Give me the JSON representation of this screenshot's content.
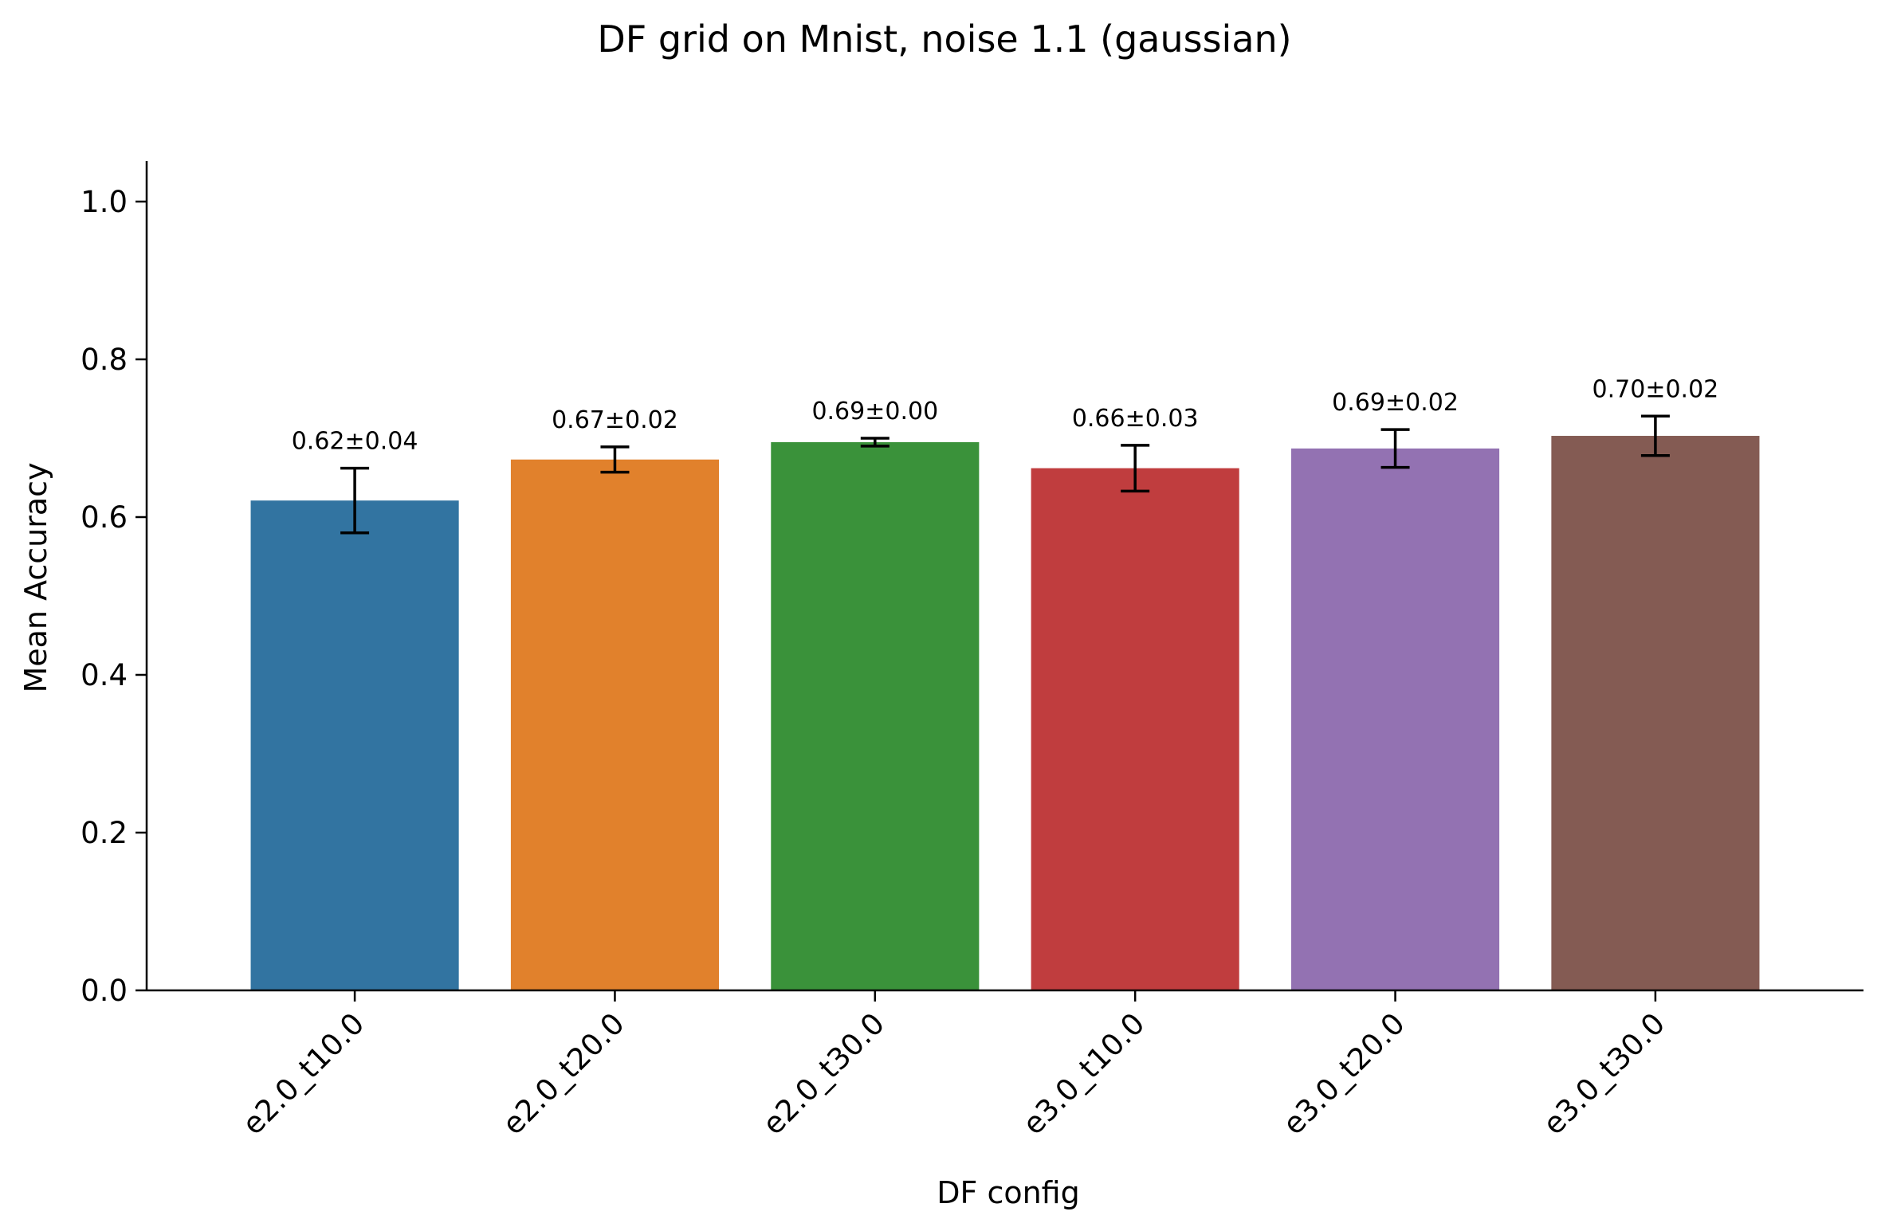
{
  "chart_data": {
    "type": "bar",
    "title": "DF grid on Mnist, noise 1.1 (gaussian)",
    "xlabel": "DF config",
    "ylabel": "Mean Accuracy",
    "ylim": [
      0,
      1.05
    ],
    "yticks": [
      0.0,
      0.2,
      0.4,
      0.6,
      0.8,
      1.0
    ],
    "ytick_labels": [
      "0.0",
      "0.2",
      "0.4",
      "0.6",
      "0.8",
      "1.0"
    ],
    "grid": false,
    "legend": "none",
    "categories": [
      "e2.0_t10.0",
      "e2.0_t20.0",
      "e2.0_t30.0",
      "e3.0_t10.0",
      "e3.0_t20.0",
      "e3.0_t30.0"
    ],
    "values": [
      0.621,
      0.673,
      0.695,
      0.662,
      0.687,
      0.703
    ],
    "errors": [
      0.041,
      0.016,
      0.005,
      0.029,
      0.024,
      0.025
    ],
    "bar_labels": [
      "0.62±0.04",
      "0.67±0.02",
      "0.69±0.00",
      "0.66±0.03",
      "0.69±0.02",
      "0.70±0.02"
    ],
    "colors": [
      "#3274a1",
      "#e1812c",
      "#3a923a",
      "#c03d3e",
      "#9372b2",
      "#845b53"
    ]
  }
}
